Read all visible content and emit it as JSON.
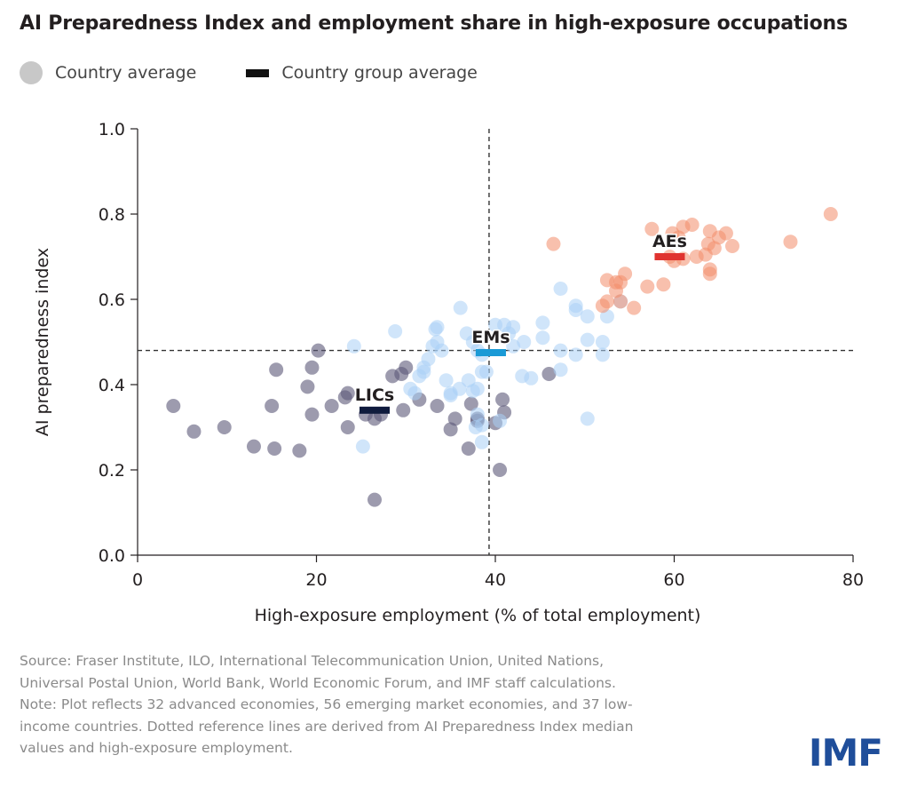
{
  "title": "AI Preparedness Index and employment share in high-exposure occupations",
  "legend": {
    "country_average": "Country average",
    "group_average": "Country group average"
  },
  "source_lines": [
    "Source: Fraser Institute, ILO, International Telecommunication Union, United Nations,",
    "Universal Postal Union, World Bank, World Economic Forum, and IMF staff calculations.",
    "Note: Plot reflects 32 advanced economies, 56 emerging market economies, and 37 low-",
    "income countries. Dotted reference lines are derived from AI Preparedness Index median",
    "values and high-exposure employment."
  ],
  "logo": "IMF",
  "colors": {
    "AEs": "#f28c6a",
    "EMs": "#a9d0f5",
    "LICs": "#5c5878",
    "AEs_avg": "#e0332f",
    "EMs_avg": "#1a9ad6",
    "LICs_avg": "#0f1b3d",
    "legend_dot": "#c8c8c8"
  },
  "chart_data": {
    "type": "scatter",
    "xlabel": "High-exposure employment (% of total employment)",
    "ylabel": "AI preparedness index",
    "xlim": [
      0,
      80
    ],
    "ylim": [
      0.0,
      1.0
    ],
    "xticks": [
      "0",
      "20",
      "40",
      "60",
      "80"
    ],
    "yticks": [
      "0.0",
      "0.2",
      "0.4",
      "0.6",
      "0.8",
      "1.0"
    ],
    "reference_lines": {
      "x": 39.3,
      "y": 0.48
    },
    "groups": [
      {
        "name": "AEs",
        "avg": {
          "x": 59.5,
          "y": 0.7
        },
        "points": [
          [
            46.5,
            0.73
          ],
          [
            57.5,
            0.765
          ],
          [
            59.8,
            0.755
          ],
          [
            60.5,
            0.745
          ],
          [
            61,
            0.77
          ],
          [
            62,
            0.775
          ],
          [
            64,
            0.76
          ],
          [
            65,
            0.745
          ],
          [
            65.8,
            0.755
          ],
          [
            63.8,
            0.73
          ],
          [
            64.5,
            0.72
          ],
          [
            66.5,
            0.725
          ],
          [
            73,
            0.735
          ],
          [
            77.5,
            0.8
          ],
          [
            59.5,
            0.7
          ],
          [
            61,
            0.695
          ],
          [
            62.5,
            0.7
          ],
          [
            63.5,
            0.705
          ],
          [
            60,
            0.69
          ],
          [
            64,
            0.67
          ],
          [
            64,
            0.66
          ],
          [
            52.5,
            0.645
          ],
          [
            53.5,
            0.64
          ],
          [
            54.5,
            0.66
          ],
          [
            54,
            0.64
          ],
          [
            57,
            0.63
          ],
          [
            58.8,
            0.635
          ],
          [
            53.5,
            0.62
          ],
          [
            52.5,
            0.595
          ],
          [
            52,
            0.585
          ],
          [
            55.5,
            0.58
          ],
          [
            54,
            0.595
          ]
        ]
      },
      {
        "name": "EMs",
        "avg": {
          "x": 39.5,
          "y": 0.475
        },
        "points": [
          [
            24.2,
            0.49
          ],
          [
            28.8,
            0.525
          ],
          [
            33.5,
            0.535
          ],
          [
            33.3,
            0.53
          ],
          [
            36.1,
            0.58
          ],
          [
            40,
            0.54
          ],
          [
            41,
            0.54
          ],
          [
            42,
            0.535
          ],
          [
            41.5,
            0.52
          ],
          [
            45.3,
            0.545
          ],
          [
            45.3,
            0.51
          ],
          [
            47.3,
            0.625
          ],
          [
            49,
            0.585
          ],
          [
            49,
            0.575
          ],
          [
            50.3,
            0.56
          ],
          [
            52.5,
            0.56
          ],
          [
            54,
            0.595
          ],
          [
            52,
            0.5
          ],
          [
            52,
            0.47
          ],
          [
            50.3,
            0.505
          ],
          [
            47.3,
            0.48
          ],
          [
            49,
            0.47
          ],
          [
            47.3,
            0.435
          ],
          [
            43.2,
            0.5
          ],
          [
            44,
            0.415
          ],
          [
            43,
            0.42
          ],
          [
            38,
            0.48
          ],
          [
            38.5,
            0.47
          ],
          [
            37.5,
            0.5
          ],
          [
            39,
            0.43
          ],
          [
            38.5,
            0.43
          ],
          [
            37.5,
            0.385
          ],
          [
            38,
            0.39
          ],
          [
            37,
            0.41
          ],
          [
            36,
            0.39
          ],
          [
            34.5,
            0.41
          ],
          [
            34,
            0.48
          ],
          [
            33,
            0.49
          ],
          [
            32.5,
            0.46
          ],
          [
            32,
            0.43
          ],
          [
            32,
            0.44
          ],
          [
            31,
            0.38
          ],
          [
            30.5,
            0.39
          ],
          [
            35,
            0.375
          ],
          [
            35,
            0.38
          ],
          [
            38,
            0.33
          ],
          [
            38.5,
            0.305
          ],
          [
            37.8,
            0.3
          ],
          [
            38.5,
            0.265
          ],
          [
            40.5,
            0.315
          ],
          [
            50.3,
            0.32
          ],
          [
            25.2,
            0.255
          ],
          [
            31.5,
            0.42
          ],
          [
            33.5,
            0.5
          ],
          [
            36.8,
            0.52
          ],
          [
            42,
            0.49
          ]
        ]
      },
      {
        "name": "LICs",
        "avg": {
          "x": 26.5,
          "y": 0.34
        },
        "points": [
          [
            4,
            0.35
          ],
          [
            6.3,
            0.29
          ],
          [
            9.7,
            0.3
          ],
          [
            13,
            0.255
          ],
          [
            15.3,
            0.25
          ],
          [
            18.1,
            0.245
          ],
          [
            15,
            0.35
          ],
          [
            15.5,
            0.435
          ],
          [
            19,
            0.395
          ],
          [
            19.5,
            0.44
          ],
          [
            20.2,
            0.48
          ],
          [
            19.5,
            0.33
          ],
          [
            21.7,
            0.35
          ],
          [
            23.2,
            0.37
          ],
          [
            23.5,
            0.38
          ],
          [
            23.5,
            0.3
          ],
          [
            25.5,
            0.33
          ],
          [
            26.5,
            0.32
          ],
          [
            27.2,
            0.33
          ],
          [
            26.5,
            0.13
          ],
          [
            28.5,
            0.42
          ],
          [
            29.5,
            0.425
          ],
          [
            30,
            0.44
          ],
          [
            29.7,
            0.34
          ],
          [
            31.5,
            0.365
          ],
          [
            33.5,
            0.35
          ],
          [
            35,
            0.295
          ],
          [
            35.5,
            0.32
          ],
          [
            37,
            0.25
          ],
          [
            37.3,
            0.355
          ],
          [
            38,
            0.32
          ],
          [
            38,
            0.315
          ],
          [
            40,
            0.31
          ],
          [
            40.8,
            0.365
          ],
          [
            41,
            0.335
          ],
          [
            40.5,
            0.2
          ],
          [
            46,
            0.425
          ]
        ]
      }
    ]
  }
}
